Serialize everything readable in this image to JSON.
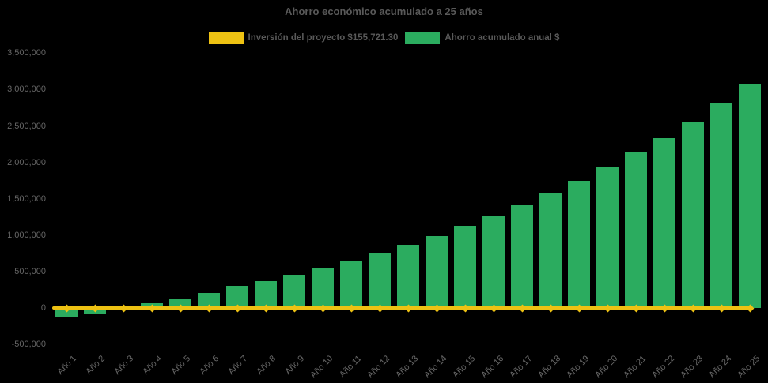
{
  "chart_data": {
    "type": "bar",
    "title": "Ahorro económico acumulado a 25 años",
    "categories": [
      "Año 1",
      "Año 2",
      "Año 3",
      "Año 4",
      "Año 5",
      "Año 6",
      "Año 7",
      "Año 8",
      "Año 9",
      "Año 10",
      "Año 11",
      "Año 12",
      "Año 13",
      "Año 14",
      "Año 15",
      "Año 16",
      "Año 17",
      "Año 18",
      "Año 19",
      "Año 20",
      "Año 21",
      "Año 22",
      "Año 23",
      "Año 24",
      "Año 25"
    ],
    "series": [
      {
        "name": "Ahorro acumulado anual $",
        "type": "bar",
        "color": "#2BAC5F",
        "values": [
          -115000,
          -75000,
          -15000,
          70000,
          130000,
          210000,
          300000,
          365000,
          455000,
          545000,
          650000,
          760000,
          870000,
          990000,
          1130000,
          1260000,
          1410000,
          1575000,
          1750000,
          1935000,
          2140000,
          2335000,
          2565000,
          2815000,
          3070000
        ]
      },
      {
        "name": "Inversión del proyecto $155,721.30",
        "type": "line",
        "color": "#EEC213",
        "marker": "diamond",
        "values": [
          0,
          0,
          0,
          0,
          0,
          0,
          0,
          0,
          0,
          0,
          0,
          0,
          0,
          0,
          0,
          0,
          0,
          0,
          0,
          0,
          0,
          0,
          0,
          0,
          0
        ]
      }
    ],
    "y_ticks": [
      {
        "label": "3,500,000",
        "value": 3500000
      },
      {
        "label": "3,000,000",
        "value": 3000000
      },
      {
        "label": "2,500,000",
        "value": 2500000
      },
      {
        "label": "2,000,000",
        "value": 2000000
      },
      {
        "label": "1,500,000",
        "value": 1500000
      },
      {
        "label": "1,000,000",
        "value": 1000000
      },
      {
        "label": "500,000",
        "value": 500000
      },
      {
        "label": "0",
        "value": 0
      },
      {
        "label": "-500,000",
        "value": -500000
      }
    ],
    "ylim": [
      -500000,
      3500000
    ],
    "xlabel": "",
    "ylabel": "",
    "grid": false,
    "legend_position": "top",
    "background": "#000000",
    "text_color": "#595959",
    "axis_label_color": "#666666"
  }
}
